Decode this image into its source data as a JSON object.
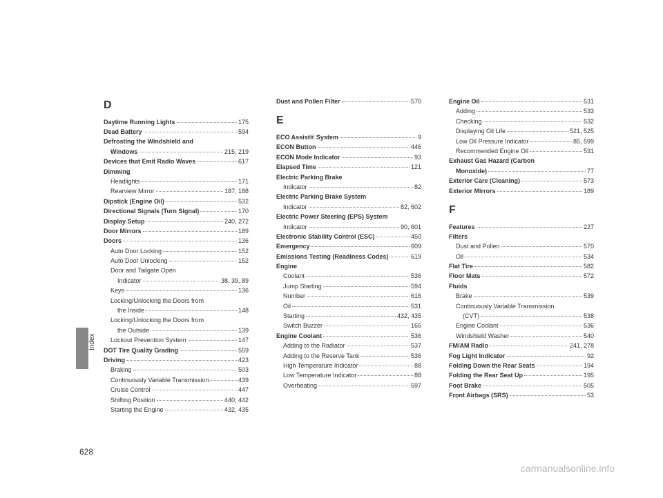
{
  "page_number": "628",
  "side_label": "Index",
  "watermark": "carmanualsonline.info",
  "columns": [
    {
      "sections": [
        {
          "letter": "D",
          "entries": [
            {
              "label": "Daytime Running Lights",
              "page": "175",
              "bold": true
            },
            {
              "label": "Dead Battery",
              "page": "594",
              "bold": true
            },
            {
              "label": "Defrosting the Windshield and",
              "bold": true,
              "nopage": true
            },
            {
              "label": "Windows",
              "page": "215, 219",
              "bold": true,
              "sub": 1
            },
            {
              "label": "Devices that Emit Radio Waves",
              "page": "617",
              "bold": true
            },
            {
              "label": "Dimming",
              "bold": true,
              "nopage": true
            },
            {
              "label": "Headlights",
              "page": "171",
              "sub": 1
            },
            {
              "label": "Rearview Mirror",
              "page": "187, 188",
              "sub": 1
            },
            {
              "label": "Dipstick (Engine Oil)",
              "page": "532",
              "bold": true
            },
            {
              "label": "Directional Signals (Turn Signal)",
              "page": "170",
              "bold": true
            },
            {
              "label": "Display Setup",
              "page": "240, 272",
              "bold": true
            },
            {
              "label": "Door Mirrors",
              "page": "189",
              "bold": true
            },
            {
              "label": "Doors",
              "page": "136",
              "bold": true
            },
            {
              "label": "Auto Door Locking",
              "page": "152",
              "sub": 1
            },
            {
              "label": "Auto Door Unlocking",
              "page": "152",
              "sub": 1
            },
            {
              "label": "Door and Tailgate Open",
              "sub": 1,
              "nopage": true
            },
            {
              "label": "Indicator",
              "page": "38, 39, 89",
              "sub": 2
            },
            {
              "label": "Keys",
              "page": "136",
              "sub": 1
            },
            {
              "label": "Locking/Unlocking the Doors from",
              "sub": 1,
              "nopage": true
            },
            {
              "label": "the Inside",
              "page": "148",
              "sub": 2
            },
            {
              "label": "Locking/Unlocking the Doors from",
              "sub": 1,
              "nopage": true
            },
            {
              "label": "the Outside",
              "page": "139",
              "sub": 2
            },
            {
              "label": "Lockout Prevention System",
              "page": "147",
              "sub": 1
            },
            {
              "label": "DOT Tire Quality Grading",
              "page": "559",
              "bold": true
            },
            {
              "label": "Driving",
              "page": "423",
              "bold": true
            },
            {
              "label": "Braking",
              "page": "503",
              "sub": 1
            },
            {
              "label": "Continuously Variable Transmission",
              "page": "439",
              "sub": 1
            },
            {
              "label": "Cruise Control",
              "page": "447",
              "sub": 1
            },
            {
              "label": "Shifting Position",
              "page": "440, 442",
              "sub": 1
            },
            {
              "label": "Starting the Engine",
              "page": "432, 435",
              "sub": 1
            }
          ]
        }
      ]
    },
    {
      "sections": [
        {
          "entries": [
            {
              "label": "Dust and Pollen Filter",
              "page": "570",
              "bold": true
            }
          ]
        },
        {
          "letter": "E",
          "entries": [
            {
              "label": "ECO Assist® System",
              "page": "9",
              "bold": true
            },
            {
              "label": "ECON Button",
              "page": "446",
              "bold": true
            },
            {
              "label": "ECON Mode Indicator",
              "page": "93",
              "bold": true
            },
            {
              "label": "Elapsed Time",
              "page": "121",
              "bold": true
            },
            {
              "label": "Electric Parking Brake",
              "bold": true,
              "nopage": true
            },
            {
              "label": "Indicator",
              "page": "82",
              "sub": 1
            },
            {
              "label": "Electric Parking Brake System",
              "bold": true,
              "nopage": true
            },
            {
              "label": "Indicator",
              "page": "82, 602",
              "sub": 1
            },
            {
              "label": "Electric Power Steering (EPS) System",
              "bold": true,
              "nopage": true
            },
            {
              "label": "Indicator",
              "page": "90, 601",
              "sub": 1
            },
            {
              "label": "Electronic Stability Control (ESC)",
              "page": "450",
              "bold": true
            },
            {
              "label": "Emergency",
              "page": "609",
              "bold": true
            },
            {
              "label": "Emissions Testing (Readiness Codes)",
              "page": "619",
              "bold": true
            },
            {
              "label": "Engine",
              "bold": true,
              "nopage": true
            },
            {
              "label": "Coolant",
              "page": "536",
              "sub": 1
            },
            {
              "label": "Jump Starting",
              "page": "594",
              "sub": 1
            },
            {
              "label": "Number",
              "page": "616",
              "sub": 1
            },
            {
              "label": "Oil",
              "page": "531",
              "sub": 1
            },
            {
              "label": "Starting",
              "page": "432, 435",
              "sub": 1
            },
            {
              "label": "Switch Buzzer",
              "page": "165",
              "sub": 1
            },
            {
              "label": "Engine Coolant",
              "page": "536",
              "bold": true
            },
            {
              "label": "Adding to the Radiator",
              "page": "537",
              "sub": 1
            },
            {
              "label": "Adding to the Reserve Tank",
              "page": "536",
              "sub": 1
            },
            {
              "label": "High Temperature Indicator",
              "page": "88",
              "sub": 1
            },
            {
              "label": "Low Temperature Indicator",
              "page": "88",
              "sub": 1
            },
            {
              "label": "Overheating",
              "page": "597",
              "sub": 1
            }
          ]
        }
      ]
    },
    {
      "sections": [
        {
          "entries": [
            {
              "label": "Engine Oil",
              "page": "531",
              "bold": true
            },
            {
              "label": "Adding",
              "page": "533",
              "sub": 1
            },
            {
              "label": "Checking",
              "page": "532",
              "sub": 1
            },
            {
              "label": "Displaying Oil Life",
              "page": "521, 525",
              "sub": 1
            },
            {
              "label": "Low Oil Pressure Indicator",
              "page": "85, 599",
              "sub": 1
            },
            {
              "label": "Recommended Engine Oil",
              "page": "531",
              "sub": 1
            },
            {
              "label": "Exhaust Gas Hazard (Carbon",
              "bold": true,
              "nopage": true
            },
            {
              "label": "Monoxide)",
              "page": "77",
              "bold": true,
              "sub": 1
            },
            {
              "label": "Exterior Care (Cleaning)",
              "page": "573",
              "bold": true
            },
            {
              "label": "Exterior Mirrors",
              "page": "189",
              "bold": true
            }
          ]
        },
        {
          "letter": "F",
          "entries": [
            {
              "label": "Features",
              "page": "227",
              "bold": true
            },
            {
              "label": "Filters",
              "bold": true,
              "nopage": true
            },
            {
              "label": "Dust and Pollen",
              "page": "570",
              "sub": 1
            },
            {
              "label": "Oil",
              "page": "534",
              "sub": 1
            },
            {
              "label": "Flat Tire",
              "page": "582",
              "bold": true
            },
            {
              "label": "Floor Mats",
              "page": "572",
              "bold": true
            },
            {
              "label": "Fluids",
              "bold": true,
              "nopage": true
            },
            {
              "label": "Brake",
              "page": "539",
              "sub": 1
            },
            {
              "label": "Continuously Variable Transmission",
              "sub": 1,
              "nopage": true
            },
            {
              "label": "(CVT)",
              "page": "538",
              "sub": 2
            },
            {
              "label": "Engine Coolant",
              "page": "536",
              "sub": 1
            },
            {
              "label": "Windshield Washer",
              "page": "540",
              "sub": 1
            },
            {
              "label": "FM/AM Radio",
              "page": "241, 278",
              "bold": true
            },
            {
              "label": "Fog Light Indicator",
              "page": "92",
              "bold": true
            },
            {
              "label": "Folding Down the Rear Seats",
              "page": "194",
              "bold": true
            },
            {
              "label": "Folding the Rear Seat Up",
              "page": "195",
              "bold": true
            },
            {
              "label": "Foot Brake",
              "page": "505",
              "bold": true
            },
            {
              "label": "Front Airbags (SRS)",
              "page": "53",
              "bold": true
            }
          ]
        }
      ]
    }
  ]
}
